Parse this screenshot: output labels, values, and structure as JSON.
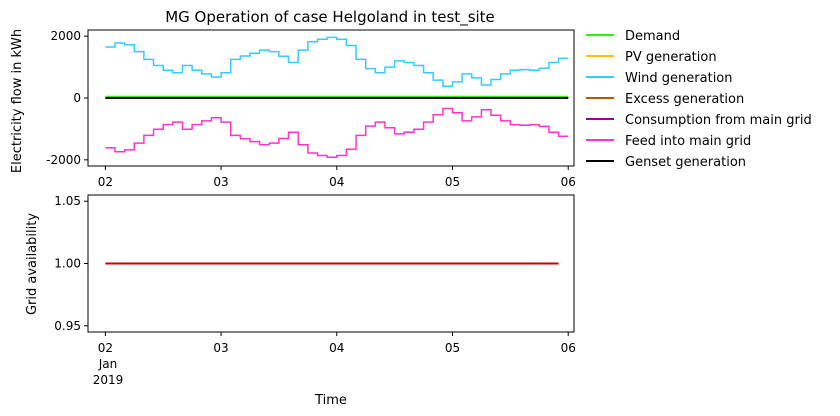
{
  "chart_data": [
    {
      "type": "line",
      "title": "MG Operation of case Helgoland in test_site",
      "xlabel": "",
      "ylabel": "Electricity flow in kWh",
      "ylim": [
        -2200,
        2200
      ],
      "yticks": [
        2000,
        0,
        -2000
      ],
      "xlim": [
        1.85,
        6.05
      ],
      "xtick_values": [
        2,
        3,
        4,
        5,
        6
      ],
      "xtick_labels": [
        "02",
        "03",
        "04",
        "05",
        "06"
      ],
      "drawstyle": "steps",
      "grid": false,
      "legend_position": "outside-right",
      "x": [
        2.0,
        2.083,
        2.167,
        2.25,
        2.333,
        2.417,
        2.5,
        2.583,
        2.667,
        2.75,
        2.833,
        2.917,
        3.0,
        3.083,
        3.167,
        3.25,
        3.333,
        3.417,
        3.5,
        3.583,
        3.667,
        3.75,
        3.833,
        3.917,
        4.0,
        4.083,
        4.167,
        4.25,
        4.333,
        4.417,
        4.5,
        4.583,
        4.667,
        4.75,
        4.833,
        4.917,
        5.0,
        5.083,
        5.167,
        5.25,
        5.333,
        5.417,
        5.5,
        5.583,
        5.667,
        5.75,
        5.833,
        5.917
      ],
      "series": [
        {
          "name": "Demand",
          "color": "#33ee11",
          "values": [
            40,
            40,
            40,
            40,
            40,
            40,
            40,
            40,
            40,
            40,
            40,
            40,
            40,
            40,
            40,
            40,
            40,
            40,
            40,
            40,
            40,
            40,
            40,
            40,
            40,
            40,
            40,
            40,
            40,
            40,
            40,
            40,
            40,
            40,
            40,
            40,
            40,
            40,
            40,
            40,
            40,
            40,
            40,
            40,
            40,
            40,
            40,
            40
          ]
        },
        {
          "name": "PV generation",
          "color": "#ffc000",
          "values": [
            0,
            0,
            0,
            0,
            0,
            0,
            0,
            0,
            0,
            0,
            0,
            0,
            0,
            0,
            0,
            0,
            0,
            0,
            0,
            0,
            0,
            0,
            0,
            0,
            0,
            0,
            0,
            0,
            0,
            0,
            0,
            0,
            0,
            0,
            0,
            0,
            0,
            0,
            0,
            0,
            0,
            0,
            0,
            0,
            0,
            0,
            0,
            0
          ]
        },
        {
          "name": "Wind generation",
          "color": "#33ccff",
          "values": [
            1650,
            1780,
            1720,
            1500,
            1250,
            1050,
            900,
            820,
            1050,
            900,
            780,
            680,
            820,
            1250,
            1360,
            1450,
            1550,
            1500,
            1350,
            1150,
            1550,
            1820,
            1900,
            1960,
            1900,
            1700,
            1250,
            950,
            820,
            1000,
            1200,
            1150,
            1050,
            820,
            580,
            380,
            520,
            780,
            650,
            420,
            600,
            780,
            900,
            920,
            900,
            960,
            1150,
            1280
          ]
        },
        {
          "name": "Excess generation",
          "color": "#b35900",
          "values": [
            0,
            0,
            0,
            0,
            0,
            0,
            0,
            0,
            0,
            0,
            0,
            0,
            0,
            0,
            0,
            0,
            0,
            0,
            0,
            0,
            0,
            0,
            0,
            0,
            0,
            0,
            0,
            0,
            0,
            0,
            0,
            0,
            0,
            0,
            0,
            0,
            0,
            0,
            0,
            0,
            0,
            0,
            0,
            0,
            0,
            0,
            0,
            0
          ]
        },
        {
          "name": "Consumption from main grid",
          "color": "#990099",
          "values": [
            0,
            0,
            0,
            0,
            0,
            0,
            0,
            0,
            0,
            0,
            0,
            0,
            0,
            0,
            0,
            0,
            0,
            0,
            0,
            0,
            0,
            0,
            0,
            0,
            0,
            0,
            0,
            0,
            0,
            0,
            0,
            0,
            0,
            0,
            0,
            0,
            0,
            0,
            0,
            0,
            0,
            0,
            0,
            0,
            0,
            0,
            0,
            0
          ]
        },
        {
          "name": "Feed into main grid",
          "color": "#ff33cc",
          "values": [
            -1610,
            -1740,
            -1680,
            -1460,
            -1210,
            -1010,
            -860,
            -780,
            -1010,
            -860,
            -740,
            -640,
            -780,
            -1210,
            -1320,
            -1410,
            -1510,
            -1460,
            -1310,
            -1110,
            -1510,
            -1780,
            -1860,
            -1920,
            -1860,
            -1660,
            -1210,
            -910,
            -780,
            -960,
            -1160,
            -1110,
            -1010,
            -780,
            -540,
            -340,
            -480,
            -740,
            -610,
            -380,
            -560,
            -740,
            -860,
            -880,
            -860,
            -920,
            -1110,
            -1240
          ]
        },
        {
          "name": "Genset generation",
          "color": "#000000",
          "values": [
            0,
            0,
            0,
            0,
            0,
            0,
            0,
            0,
            0,
            0,
            0,
            0,
            0,
            0,
            0,
            0,
            0,
            0,
            0,
            0,
            0,
            0,
            0,
            0,
            0,
            0,
            0,
            0,
            0,
            0,
            0,
            0,
            0,
            0,
            0,
            0,
            0,
            0,
            0,
            0,
            0,
            0,
            0,
            0,
            0,
            0,
            0,
            0
          ]
        }
      ]
    },
    {
      "type": "line",
      "title": "",
      "xlabel": "Time",
      "ylabel": "Grid availability",
      "ylim": [
        0.945,
        1.055
      ],
      "yticks": [
        1.05,
        1.0,
        0.95
      ],
      "ytick_labels": [
        "1.05",
        "1.00",
        "0.95"
      ],
      "xlim": [
        1.85,
        6.05
      ],
      "xtick_values": [
        2,
        3,
        4,
        5,
        6
      ],
      "xtick_labels": [
        "02",
        "03",
        "04",
        "05",
        "06"
      ],
      "xtick_sublabel_lines": [
        "Jan",
        "2019"
      ],
      "grid": false,
      "series": [
        {
          "color": "#cc0000",
          "x": [
            2.0,
            5.917
          ],
          "values": [
            1.0,
            1.0
          ]
        }
      ]
    }
  ]
}
